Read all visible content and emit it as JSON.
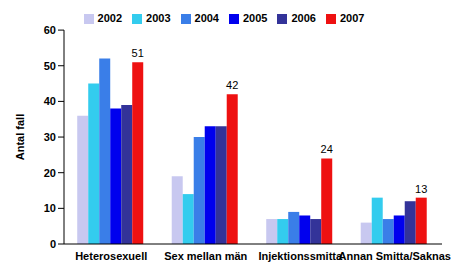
{
  "chart_data": {
    "type": "bar",
    "y_label": "Antal fall",
    "categories": [
      "Heterosexuell",
      "Sex mellan män",
      "Injektionssmitta",
      "Annan Smitta/Saknas"
    ],
    "series": [
      {
        "name": "2002",
        "color": "#c8c8f0",
        "values": [
          36,
          19,
          7,
          6
        ]
      },
      {
        "name": "2003",
        "color": "#33ccee",
        "values": [
          45,
          14,
          7,
          13
        ]
      },
      {
        "name": "2004",
        "color": "#3a7ee8",
        "values": [
          52,
          30,
          9,
          7
        ]
      },
      {
        "name": "2005",
        "color": "#0000ee",
        "values": [
          38,
          33,
          8,
          8
        ]
      },
      {
        "name": "2006",
        "color": "#333399",
        "values": [
          39,
          33,
          7,
          12
        ]
      },
      {
        "name": "2007",
        "color": "#ee1111",
        "values": [
          51,
          42,
          24,
          13
        ],
        "data_labels": true
      }
    ],
    "ylim": [
      0,
      60
    ],
    "yticks": [
      0,
      10,
      20,
      30,
      40,
      50,
      60
    ],
    "grid": false,
    "legend": "top"
  }
}
